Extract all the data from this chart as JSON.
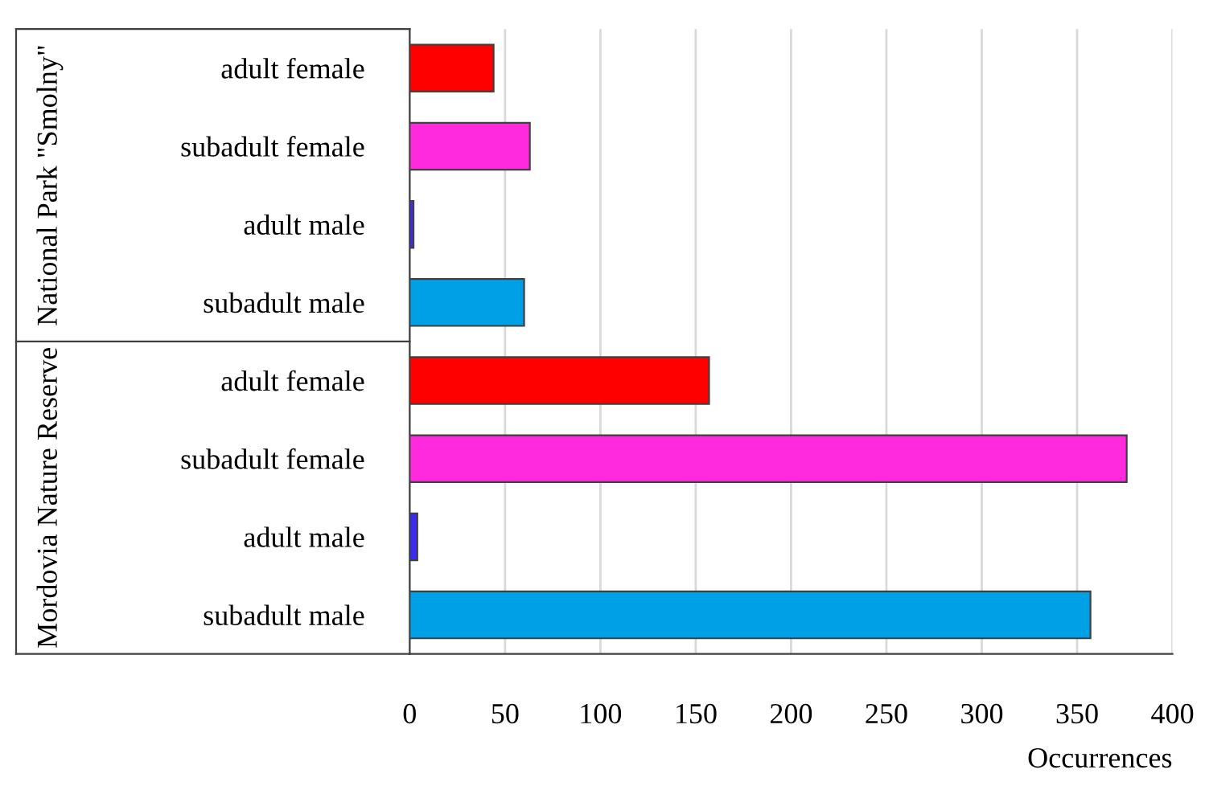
{
  "chart_data": {
    "type": "bar",
    "orientation": "horizontal",
    "xlabel": "Occurrences",
    "categories": [
      "adult female",
      "subadult female",
      "adult male",
      "subadult male",
      "adult female",
      "subadult female",
      "adult male",
      "subadult male"
    ],
    "values": [
      44,
      63,
      2,
      60,
      157,
      376,
      4,
      357
    ],
    "colors": [
      "#ff0000",
      "#ff29de",
      "#3a2cf0",
      "#00a0e6",
      "#ff0000",
      "#ff29de",
      "#3a2cf0",
      "#00a0e6"
    ],
    "annotations": [
      "National Park \"Smolny\"",
      "Mordovia Nature Reserve"
    ],
    "xlim": [
      0,
      400
    ],
    "xticks": [
      0,
      50,
      100,
      150,
      200,
      250,
      300,
      350,
      400
    ],
    "grid": "x",
    "legend": false
  }
}
